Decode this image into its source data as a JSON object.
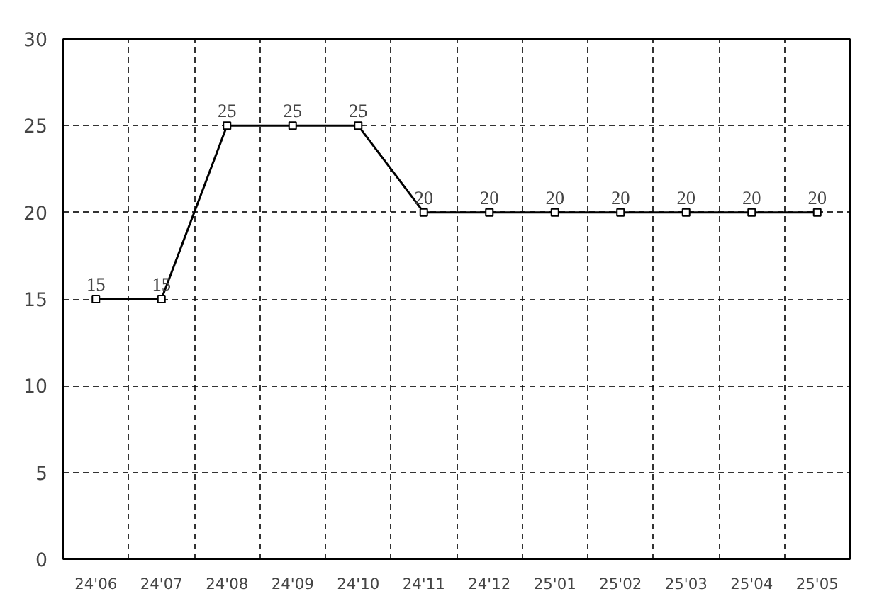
{
  "chart_data": {
    "type": "line",
    "categories": [
      "24'06",
      "24'07",
      "24'08",
      "24'09",
      "24'10",
      "24'11",
      "24'12",
      "25'01",
      "25'02",
      "25'03",
      "25'04",
      "25'05"
    ],
    "series": [
      {
        "color": "#000000",
        "values": [
          15,
          15,
          25,
          25,
          25,
          20,
          20,
          20,
          20,
          20,
          20,
          20
        ]
      }
    ],
    "ylim": [
      0,
      30
    ],
    "yticks": [
      0,
      5,
      10,
      15,
      20,
      25,
      30
    ],
    "grid": true,
    "marker": "square",
    "line_style": "solid",
    "data_labels": true
  }
}
